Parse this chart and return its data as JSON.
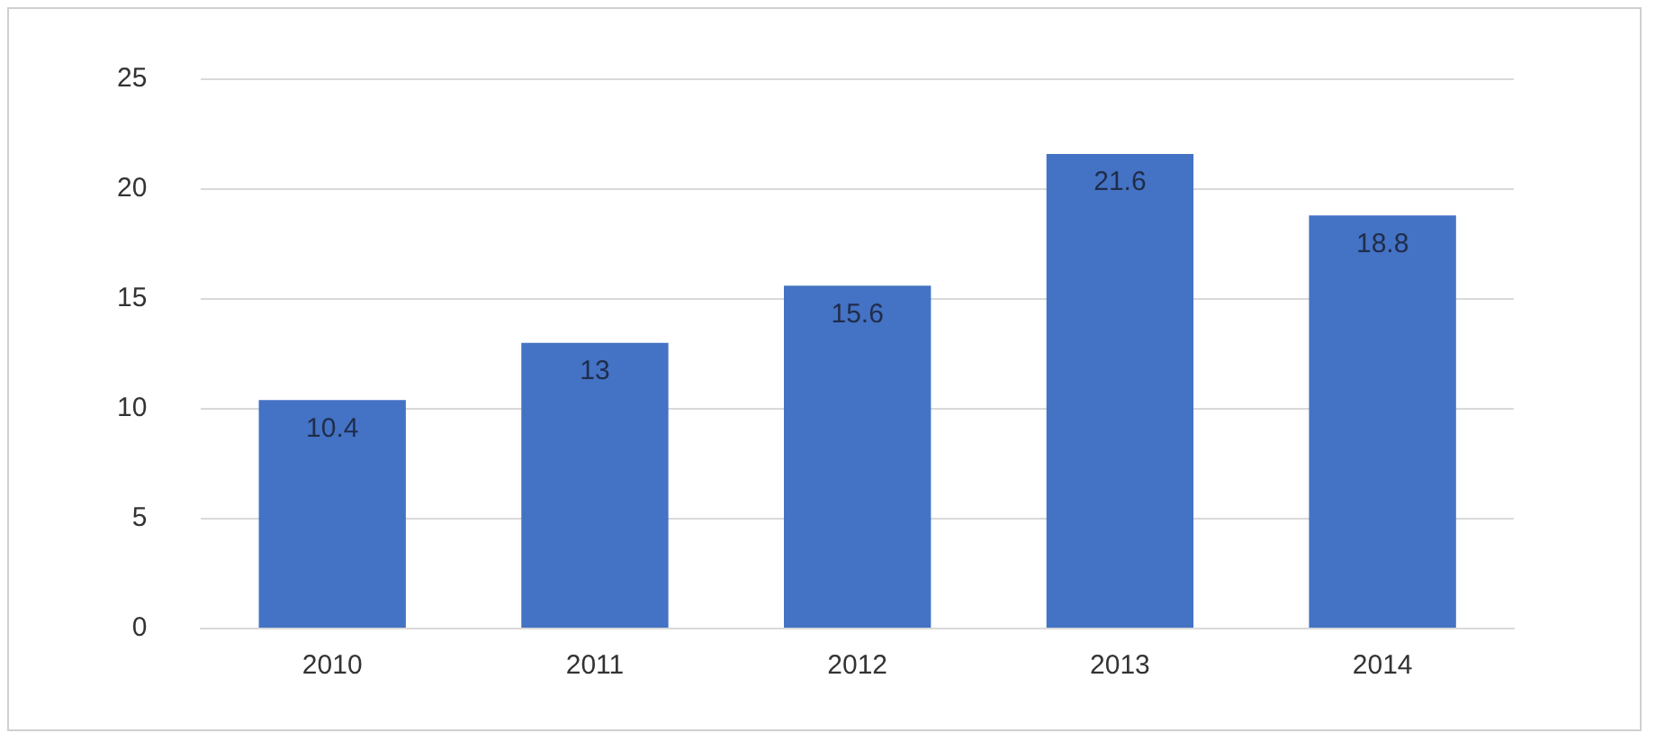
{
  "chart_data": {
    "type": "bar",
    "categories": [
      "2010",
      "2011",
      "2012",
      "2013",
      "2014"
    ],
    "values": [
      10.4,
      13,
      15.6,
      21.6,
      18.8
    ],
    "color": "#4472c4",
    "ylim": [
      0,
      25
    ],
    "yticks": [
      0,
      5,
      10,
      15,
      20,
      25
    ],
    "grid": "y",
    "data_labels": true,
    "legend": false
  }
}
